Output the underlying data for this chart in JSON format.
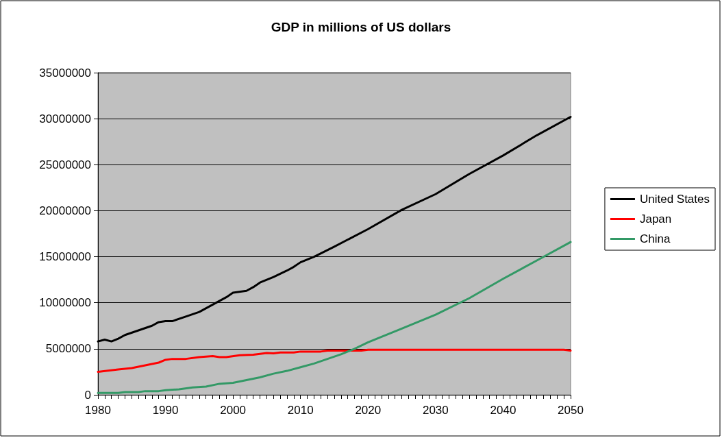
{
  "chart_data": {
    "type": "line",
    "title": "GDP in millions of US dollars",
    "xlim": [
      1980,
      2050
    ],
    "xticks": [
      1980,
      1990,
      2000,
      2010,
      2020,
      2030,
      2040,
      2050
    ],
    "ylim": [
      0,
      35000000
    ],
    "yticks": [
      0,
      5000000,
      10000000,
      15000000,
      20000000,
      25000000,
      30000000,
      35000000
    ],
    "grid": "y",
    "legend": "right",
    "marker": "none",
    "line_style": "solid",
    "series": [
      {
        "name": "United States",
        "color": "#000000",
        "x": [
          1980,
          1981,
          1982,
          1983,
          1984,
          1986,
          1988,
          1989,
          1990,
          1991,
          1993,
          1995,
          1997,
          1999,
          2000,
          2002,
          2003,
          2004,
          2006,
          2008,
          2009,
          2010,
          2012,
          2015,
          2020,
          2025,
          2030,
          2035,
          2040,
          2045,
          2050
        ],
        "values": [
          5800000,
          6000000,
          5800000,
          6100000,
          6500000,
          7000000,
          7500000,
          7900000,
          8000000,
          8000000,
          8500000,
          9000000,
          9800000,
          10600000,
          11100000,
          11300000,
          11700000,
          12200000,
          12800000,
          13500000,
          13900000,
          14400000,
          15000000,
          16100000,
          18000000,
          20100000,
          21800000,
          24000000,
          26000000,
          28200000,
          30200000
        ]
      },
      {
        "name": "Japan",
        "color": "#ff0000",
        "x": [
          1980,
          1983,
          1985,
          1987,
          1989,
          1990,
          1991,
          1993,
          1995,
          1997,
          1998,
          1999,
          2001,
          2003,
          2005,
          2006,
          2007,
          2009,
          2010,
          2013,
          2014,
          2019,
          2020,
          2049,
          2050
        ],
        "values": [
          2500000,
          2750000,
          2900000,
          3200000,
          3500000,
          3800000,
          3900000,
          3900000,
          4100000,
          4200000,
          4100000,
          4100000,
          4300000,
          4350000,
          4550000,
          4500000,
          4600000,
          4600000,
          4700000,
          4700000,
          4800000,
          4800000,
          4900000,
          4900000,
          4800000
        ]
      },
      {
        "name": "China",
        "color": "#339966",
        "x": [
          1980,
          1983,
          1984,
          1986,
          1987,
          1989,
          1990,
          1992,
          1994,
          1996,
          1998,
          2000,
          2002,
          2004,
          2006,
          2008,
          2010,
          2012,
          2014,
          2016,
          2018,
          2020,
          2022,
          2025,
          2030,
          2035,
          2040,
          2045,
          2050
        ],
        "values": [
          200000,
          200000,
          300000,
          300000,
          400000,
          400000,
          500000,
          600000,
          800000,
          900000,
          1200000,
          1300000,
          1600000,
          1900000,
          2300000,
          2600000,
          3000000,
          3400000,
          3900000,
          4400000,
          5000000,
          5700000,
          6300000,
          7200000,
          8700000,
          10500000,
          12600000,
          14600000,
          16600000
        ]
      }
    ]
  }
}
